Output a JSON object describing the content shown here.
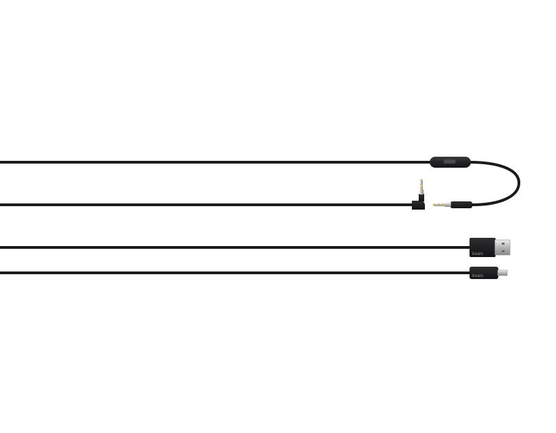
{
  "photo": {
    "subject": "cables",
    "cable_color": "#1b1b1e",
    "plug_metal_color": "#c7c7c7",
    "gold_contact_color": "#c9a646",
    "background_color": "#ffffff",
    "usb_brand_mark": "beats",
    "micro_usb_brand_mark": "beats"
  }
}
